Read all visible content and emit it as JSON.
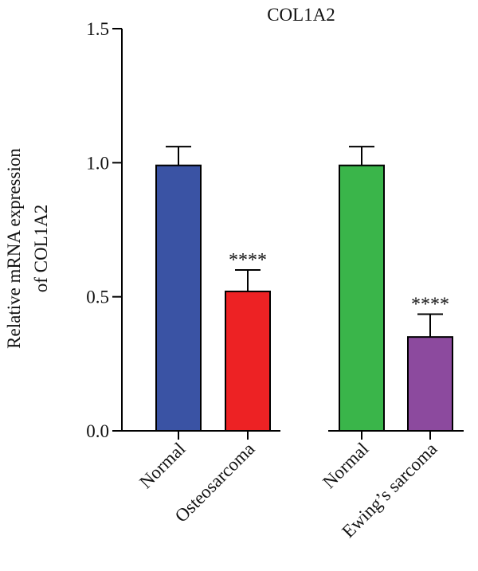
{
  "chart_data": {
    "type": "bar",
    "title": "COL1A2",
    "ylabel_lines": [
      "Relative mRNA expression",
      "of COL1A2"
    ],
    "xlabel": "",
    "ylim": [
      0,
      1.5
    ],
    "yticks": [
      "0.0",
      "0.5",
      "1.0",
      "1.5"
    ],
    "ytick_values": [
      0,
      0.5,
      1.0,
      1.5
    ],
    "grid": false,
    "legend": "none",
    "categories": [
      "Normal",
      "Osteosarcoma",
      "Normal",
      "Ewing’s sarcoma"
    ],
    "values": [
      0.99,
      0.52,
      0.99,
      0.35
    ],
    "errors": [
      0.07,
      0.08,
      0.07,
      0.085
    ],
    "significance": [
      "",
      "****",
      "",
      "****"
    ],
    "colors": [
      "#3a53a4",
      "#ed2224",
      "#3ab54a",
      "#8c4a9e"
    ],
    "axis_color": "#000000"
  }
}
